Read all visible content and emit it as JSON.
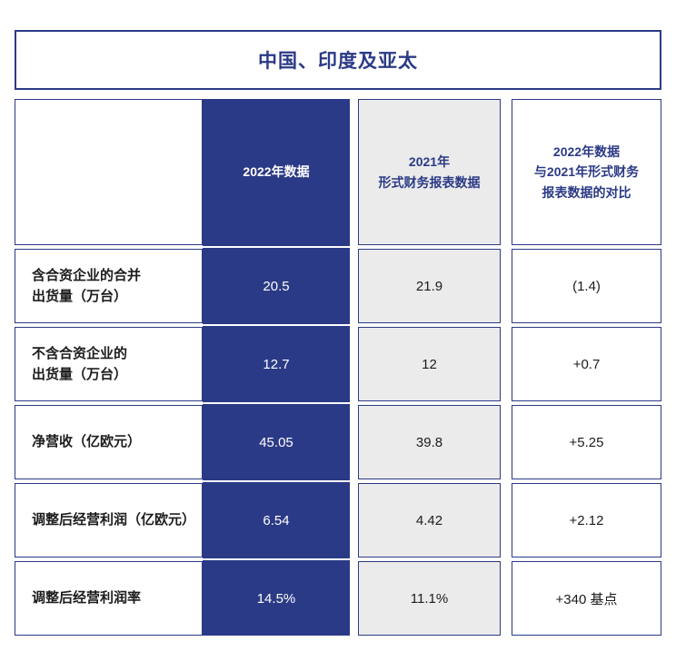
{
  "title": "中国、印度及亚太",
  "colors": {
    "primary_blue": "#2b3a86",
    "light_gray": "#ebebeb",
    "text_dark": "#1c1c1c",
    "white": "#ffffff"
  },
  "table": {
    "columns": [
      {
        "key": "label",
        "header": ""
      },
      {
        "key": "y2022",
        "header": "2022年数据"
      },
      {
        "key": "y2021",
        "header": "2021年\n形式财务报表数据"
      },
      {
        "key": "delta",
        "header": "2022年数据\n与2021年形式财务\n报表数据的对比"
      }
    ],
    "rows": [
      {
        "label": "含合资企业的合并\n出货量（万台）",
        "y2022": "20.5",
        "y2021": "21.9",
        "delta": "(1.4)"
      },
      {
        "label": "不含合资企业的\n出货量（万台）",
        "y2022": "12.7",
        "y2021": "12",
        "delta": "+0.7"
      },
      {
        "label": "净营收（亿欧元）",
        "y2022": "45.05",
        "y2021": "39.8",
        "delta": "+5.25"
      },
      {
        "label": "调整后经营利润（亿欧元）",
        "y2022": "6.54",
        "y2021": "4.42",
        "delta": "+2.12"
      },
      {
        "label": "调整后经营利润率",
        "y2022": "14.5%",
        "y2021": "11.1%",
        "delta": "+340 基点"
      }
    ]
  },
  "chart_data": {
    "type": "table",
    "title": "中国、印度及亚太",
    "columns": [
      "",
      "2022年数据",
      "2021年形式财务报表数据",
      "2022年数据与2021年形式财务报表数据的对比"
    ],
    "rows": [
      [
        "含合资企业的合并出货量（万台）",
        "20.5",
        "21.9",
        "(1.4)"
      ],
      [
        "不含合资企业的出货量（万台）",
        "12.7",
        "12",
        "+0.7"
      ],
      [
        "净营收（亿欧元）",
        "45.05",
        "39.8",
        "+5.25"
      ],
      [
        "调整后经营利润（亿欧元）",
        "6.54",
        "4.42",
        "+2.12"
      ],
      [
        "调整后经营利润率",
        "14.5%",
        "11.1%",
        "+340 基点"
      ]
    ]
  }
}
